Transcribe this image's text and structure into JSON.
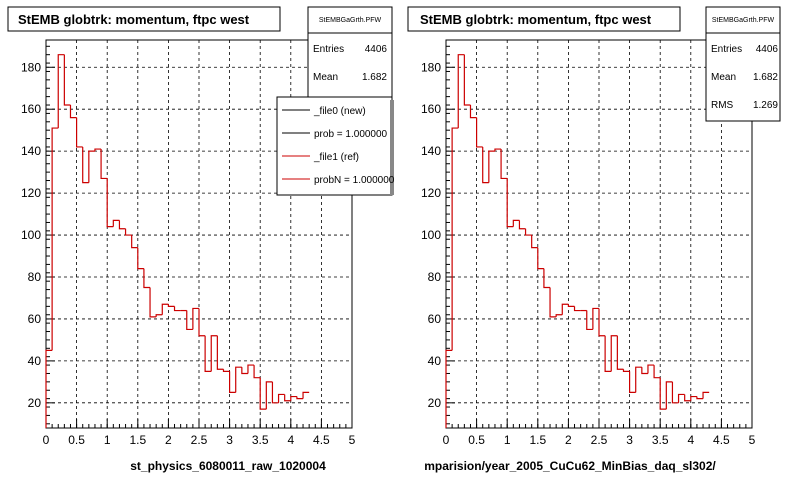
{
  "chart_data": [
    {
      "type": "histogram",
      "title": "StEMB globtrk: momentum, ftpc west",
      "xlabel": "st_physics_6080011_raw_1020004",
      "xlim": [
        0,
        5
      ],
      "ylim": [
        8,
        193
      ],
      "xticks": [
        "0",
        "0.5",
        "1",
        "1.5",
        "2",
        "2.5",
        "3",
        "3.5",
        "4",
        "4.5",
        "5"
      ],
      "yticks": [
        "20",
        "40",
        "60",
        "80",
        "100",
        "120",
        "140",
        "160",
        "180"
      ],
      "grid": true,
      "stats": {
        "name": "StEMBGaGrth.PFW",
        "rows": [
          {
            "label": "Entries",
            "value": "4406"
          },
          {
            "label": "Mean",
            "value": "1.682"
          }
        ]
      },
      "legend": [
        {
          "label": "_file0 (new)",
          "color": "#000000"
        },
        {
          "label": "prob = 1.000000",
          "color": "#000000"
        },
        {
          "label": "_file1 (ref)",
          "color": "#cc0000"
        },
        {
          "label": "probN = 1.000000",
          "color": "#cc0000"
        }
      ],
      "series": [
        {
          "color": "#cc0000",
          "bin_width": 0.1,
          "values": [
            45,
            151,
            186,
            162,
            156,
            142,
            125,
            140,
            141,
            127,
            104,
            107,
            103,
            100,
            94,
            84,
            75,
            61,
            62,
            67,
            66,
            64,
            64,
            55,
            65,
            52,
            35,
            52,
            36,
            35,
            25,
            37,
            34,
            38,
            32,
            17,
            30,
            20,
            24,
            21,
            23,
            22,
            25
          ]
        }
      ]
    },
    {
      "type": "histogram",
      "title": "StEMB globtrk: momentum, ftpc west",
      "xlabel": "mparision/year_2005_CuCu62_MinBias_daq_sl302/",
      "xlim": [
        0,
        5
      ],
      "ylim": [
        8,
        193
      ],
      "xticks": [
        "0",
        "0.5",
        "1",
        "1.5",
        "2",
        "2.5",
        "3",
        "3.5",
        "4",
        "4.5",
        "5"
      ],
      "yticks": [
        "20",
        "40",
        "60",
        "80",
        "100",
        "120",
        "140",
        "160",
        "180"
      ],
      "grid": true,
      "stats": {
        "name": "StEMBGaGrth.PFW",
        "rows": [
          {
            "label": "Entries",
            "value": "4406"
          },
          {
            "label": "Mean",
            "value": "1.682"
          },
          {
            "label": "RMS",
            "value": "1.269"
          }
        ]
      },
      "series": [
        {
          "color": "#cc0000",
          "bin_width": 0.1,
          "values": [
            45,
            151,
            186,
            162,
            156,
            142,
            125,
            140,
            141,
            127,
            104,
            107,
            103,
            100,
            94,
            84,
            75,
            61,
            62,
            67,
            66,
            64,
            64,
            55,
            65,
            52,
            35,
            52,
            36,
            35,
            25,
            37,
            34,
            38,
            32,
            17,
            30,
            20,
            24,
            21,
            23,
            22,
            25
          ]
        }
      ]
    }
  ]
}
